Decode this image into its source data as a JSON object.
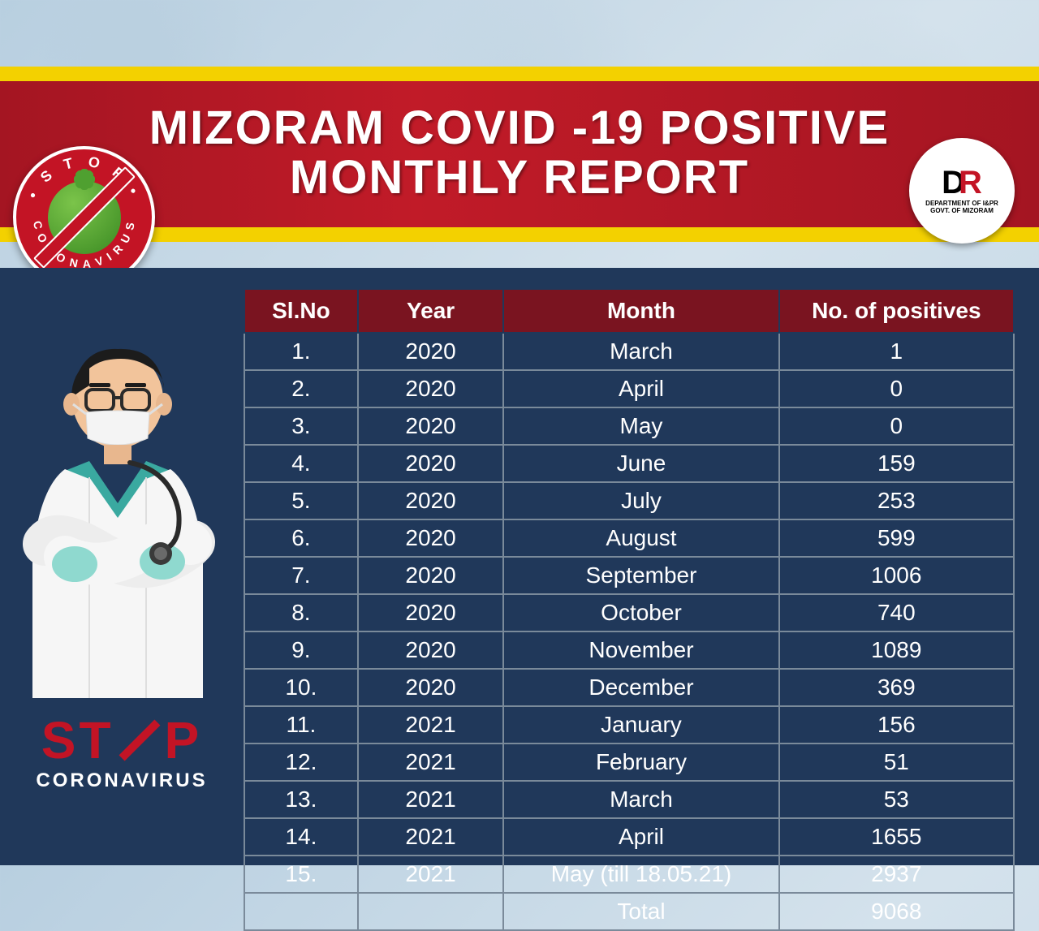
{
  "banner": {
    "title_line1": "MIZORAM COVID -19 POSITIVE",
    "title_line2": "MONTHLY REPORT"
  },
  "colors": {
    "yellow": "#f3d100",
    "red_banner": "#a41522",
    "panel_bg": "#20385a",
    "header_bg": "#7a1420",
    "stop_red": "#c31425",
    "text_white": "#ffffff",
    "border_gray": "#7a8a9a"
  },
  "dpr": {
    "line1": "DEPARTMENT OF I&PR",
    "line2": "GOVT. OF MIZORAM"
  },
  "stop_text": {
    "s": "S",
    "t1": "T",
    "p": "P",
    "sub": "CORONAVIRUS"
  },
  "table": {
    "columns": [
      "Sl.No",
      "Year",
      "Month",
      "No. of positives"
    ],
    "rows": [
      {
        "sl": "1.",
        "year": "2020",
        "month": "March",
        "pos": "1"
      },
      {
        "sl": "2.",
        "year": "2020",
        "month": "April",
        "pos": "0"
      },
      {
        "sl": "3.",
        "year": "2020",
        "month": "May",
        "pos": "0"
      },
      {
        "sl": "4.",
        "year": "2020",
        "month": "June",
        "pos": "159"
      },
      {
        "sl": "5.",
        "year": "2020",
        "month": "July",
        "pos": "253"
      },
      {
        "sl": "6.",
        "year": "2020",
        "month": "August",
        "pos": "599"
      },
      {
        "sl": "7.",
        "year": "2020",
        "month": "September",
        "pos": "1006"
      },
      {
        "sl": "8.",
        "year": "2020",
        "month": "October",
        "pos": "740"
      },
      {
        "sl": "9.",
        "year": "2020",
        "month": "November",
        "pos": "1089"
      },
      {
        "sl": "10.",
        "year": "2020",
        "month": "December",
        "pos": "369"
      },
      {
        "sl": "11.",
        "year": "2021",
        "month": "January",
        "pos": "156"
      },
      {
        "sl": "12.",
        "year": "2021",
        "month": "February",
        "pos": "51"
      },
      {
        "sl": "13.",
        "year": "2021",
        "month": "March",
        "pos": "53"
      },
      {
        "sl": "14.",
        "year": "2021",
        "month": "April",
        "pos": "1655"
      },
      {
        "sl": "15.",
        "year": "2021",
        "month": "May (till 18.05.21)",
        "pos": "2937"
      }
    ],
    "total_label": "Total",
    "total_value": "9068"
  }
}
